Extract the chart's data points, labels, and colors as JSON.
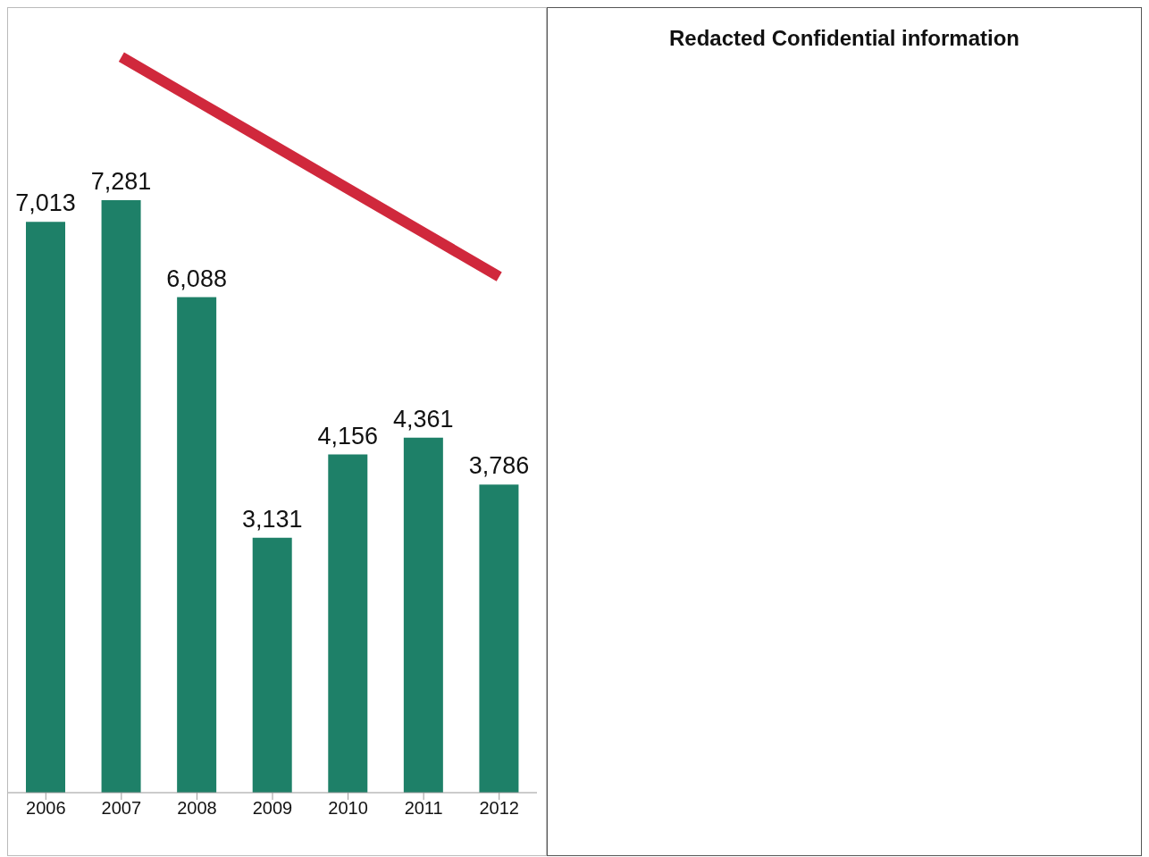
{
  "chart_data": [
    {
      "type": "bar",
      "categories": [
        "2006",
        "2007",
        "2008",
        "2009",
        "2010",
        "2011",
        "2012"
      ],
      "series": [
        {
          "type": "bar",
          "color": "#1e8068",
          "values": [
            7013,
            7281,
            6088,
            3131,
            4156,
            4361,
            3786
          ],
          "value_labels": [
            "7,013",
            "7,281",
            "6,088",
            "3,131",
            "4,156",
            "4,361",
            "3,786"
          ]
        },
        {
          "type": "line",
          "color": "#d0283c",
          "values": [
            null,
            9040,
            8500,
            7960,
            7420,
            6880,
            6340
          ]
        }
      ]
    },
    {
      "type": "other",
      "title": "Redacted Confidential information"
    }
  ]
}
